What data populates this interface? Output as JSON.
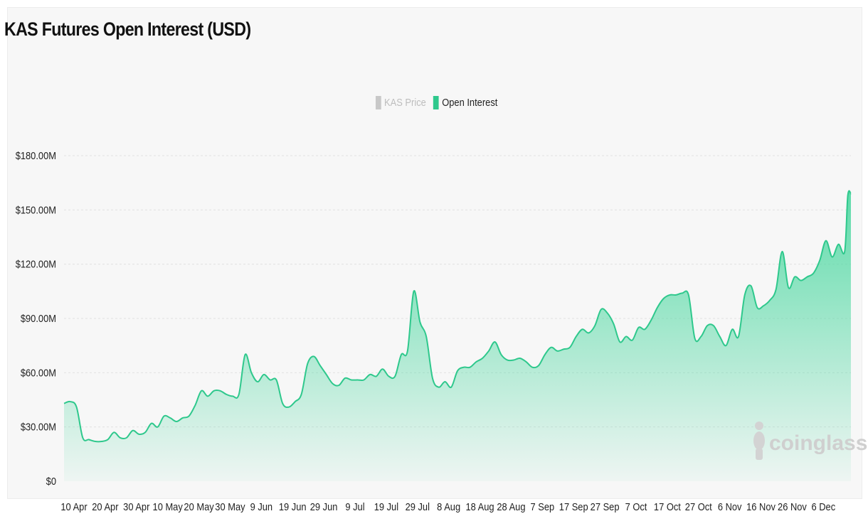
{
  "chart_data": {
    "type": "area",
    "title": "KAS Futures Open Interest (USD)",
    "legend": [
      {
        "label": "KAS Price",
        "color": "#c8c8c8",
        "inactive": true
      },
      {
        "label": "Open Interest",
        "color": "#2ec88c",
        "inactive": false
      }
    ],
    "legend_placement": "top-center",
    "grid": true,
    "y_ticks": [
      "$0",
      "$30.00M",
      "$60.00M",
      "$90.00M",
      "$120.00M",
      "$150.00M",
      "$180.00M"
    ],
    "ylim": [
      0,
      180
    ],
    "y_unit": "USD millions",
    "x_ticks": [
      "10 Apr",
      "20 Apr",
      "30 Apr",
      "10 May",
      "20 May",
      "30 May",
      "9 Jun",
      "19 Jun",
      "29 Jun",
      "9 Jul",
      "19 Jul",
      "29 Jul",
      "8 Aug",
      "18 Aug",
      "28 Aug",
      "7 Sep",
      "17 Sep",
      "27 Sep",
      "7 Oct",
      "17 Oct",
      "27 Oct",
      "6 Nov",
      "16 Nov",
      "26 Nov",
      "6 Dec"
    ],
    "series": [
      {
        "name": "Open Interest",
        "color": "#2ec88c",
        "points": [
          [
            "10 Apr",
            43
          ],
          [
            "12 Apr",
            44
          ],
          [
            "14 Apr",
            41
          ],
          [
            "16 Apr",
            24
          ],
          [
            "18 Apr",
            23
          ],
          [
            "20 Apr",
            22
          ],
          [
            "22 Apr",
            22
          ],
          [
            "24 Apr",
            23
          ],
          [
            "26 Apr",
            27
          ],
          [
            "28 Apr",
            24
          ],
          [
            "30 Apr",
            24
          ],
          [
            "2 May",
            28
          ],
          [
            "4 May",
            26
          ],
          [
            "6 May",
            27
          ],
          [
            "8 May",
            32
          ],
          [
            "10 May",
            30
          ],
          [
            "12 May",
            36
          ],
          [
            "14 May",
            35
          ],
          [
            "16 May",
            33
          ],
          [
            "18 May",
            35
          ],
          [
            "20 May",
            36
          ],
          [
            "22 May",
            42
          ],
          [
            "24 May",
            50
          ],
          [
            "26 May",
            47
          ],
          [
            "28 May",
            50
          ],
          [
            "30 May",
            50
          ],
          [
            "1 Jun",
            48
          ],
          [
            "3 Jun",
            47
          ],
          [
            "5 Jun",
            48
          ],
          [
            "7 Jun",
            70
          ],
          [
            "9 Jun",
            60
          ],
          [
            "11 Jun",
            55
          ],
          [
            "13 Jun",
            59
          ],
          [
            "15 Jun",
            56
          ],
          [
            "17 Jun",
            56
          ],
          [
            "19 Jun",
            43
          ],
          [
            "21 Jun",
            41
          ],
          [
            "23 Jun",
            44
          ],
          [
            "25 Jun",
            48
          ],
          [
            "27 Jun",
            65
          ],
          [
            "29 Jun",
            69
          ],
          [
            "1 Jul",
            64
          ],
          [
            "3 Jul",
            59
          ],
          [
            "5 Jul",
            54
          ],
          [
            "7 Jul",
            53
          ],
          [
            "9 Jul",
            57
          ],
          [
            "11 Jul",
            56
          ],
          [
            "13 Jul",
            56
          ],
          [
            "15 Jul",
            56
          ],
          [
            "17 Jul",
            59
          ],
          [
            "19 Jul",
            58
          ],
          [
            "21 Jul",
            62
          ],
          [
            "23 Jul",
            58
          ],
          [
            "25 Jul",
            58
          ],
          [
            "27 Jul",
            70
          ],
          [
            "29 Jul",
            72
          ],
          [
            "31 Jul",
            105
          ],
          [
            "2 Aug",
            88
          ],
          [
            "4 Aug",
            80
          ],
          [
            "6 Aug",
            57
          ],
          [
            "8 Aug",
            52
          ],
          [
            "10 Aug",
            55
          ],
          [
            "12 Aug",
            52
          ],
          [
            "14 Aug",
            61
          ],
          [
            "16 Aug",
            63
          ],
          [
            "18 Aug",
            63
          ],
          [
            "20 Aug",
            66
          ],
          [
            "22 Aug",
            68
          ],
          [
            "24 Aug",
            72
          ],
          [
            "26 Aug",
            77
          ],
          [
            "28 Aug",
            70
          ],
          [
            "30 Aug",
            67
          ],
          [
            "1 Sep",
            67
          ],
          [
            "3 Sep",
            68
          ],
          [
            "5 Sep",
            66
          ],
          [
            "7 Sep",
            63
          ],
          [
            "9 Sep",
            64
          ],
          [
            "11 Sep",
            70
          ],
          [
            "13 Sep",
            74
          ],
          [
            "15 Sep",
            72
          ],
          [
            "17 Sep",
            73
          ],
          [
            "19 Sep",
            74
          ],
          [
            "21 Sep",
            80
          ],
          [
            "23 Sep",
            84
          ],
          [
            "25 Sep",
            82
          ],
          [
            "27 Sep",
            86
          ],
          [
            "29 Sep",
            95
          ],
          [
            "1 Oct",
            93
          ],
          [
            "3 Oct",
            87
          ],
          [
            "5 Oct",
            77
          ],
          [
            "7 Oct",
            80
          ],
          [
            "9 Oct",
            78
          ],
          [
            "11 Oct",
            85
          ],
          [
            "13 Oct",
            84
          ],
          [
            "15 Oct",
            89
          ],
          [
            "17 Oct",
            96
          ],
          [
            "19 Oct",
            101
          ],
          [
            "21 Oct",
            103
          ],
          [
            "23 Oct",
            103
          ],
          [
            "25 Oct",
            104
          ],
          [
            "27 Oct",
            103
          ],
          [
            "29 Oct",
            79
          ],
          [
            "31 Oct",
            80
          ],
          [
            "2 Nov",
            86
          ],
          [
            "4 Nov",
            86
          ],
          [
            "6 Nov",
            80
          ],
          [
            "8 Nov",
            75
          ],
          [
            "10 Nov",
            84
          ],
          [
            "12 Nov",
            80
          ],
          [
            "14 Nov",
            103
          ],
          [
            "16 Nov",
            108
          ],
          [
            "18 Nov",
            96
          ],
          [
            "20 Nov",
            97
          ],
          [
            "22 Nov",
            100
          ],
          [
            "24 Nov",
            106
          ],
          [
            "26 Nov",
            127
          ],
          [
            "28 Nov",
            107
          ],
          [
            "30 Nov",
            113
          ],
          [
            "2 Dec",
            111
          ],
          [
            "4 Dec",
            113
          ],
          [
            "6 Dec",
            115
          ],
          [
            "8 Dec",
            122
          ],
          [
            "10 Dec",
            133
          ],
          [
            "12 Dec",
            124
          ],
          [
            "14 Dec",
            131
          ],
          [
            "16 Dec",
            127
          ],
          [
            "17 Dec",
            158
          ],
          [
            "18 Dec",
            159
          ]
        ]
      }
    ]
  },
  "watermark": "coinglass"
}
